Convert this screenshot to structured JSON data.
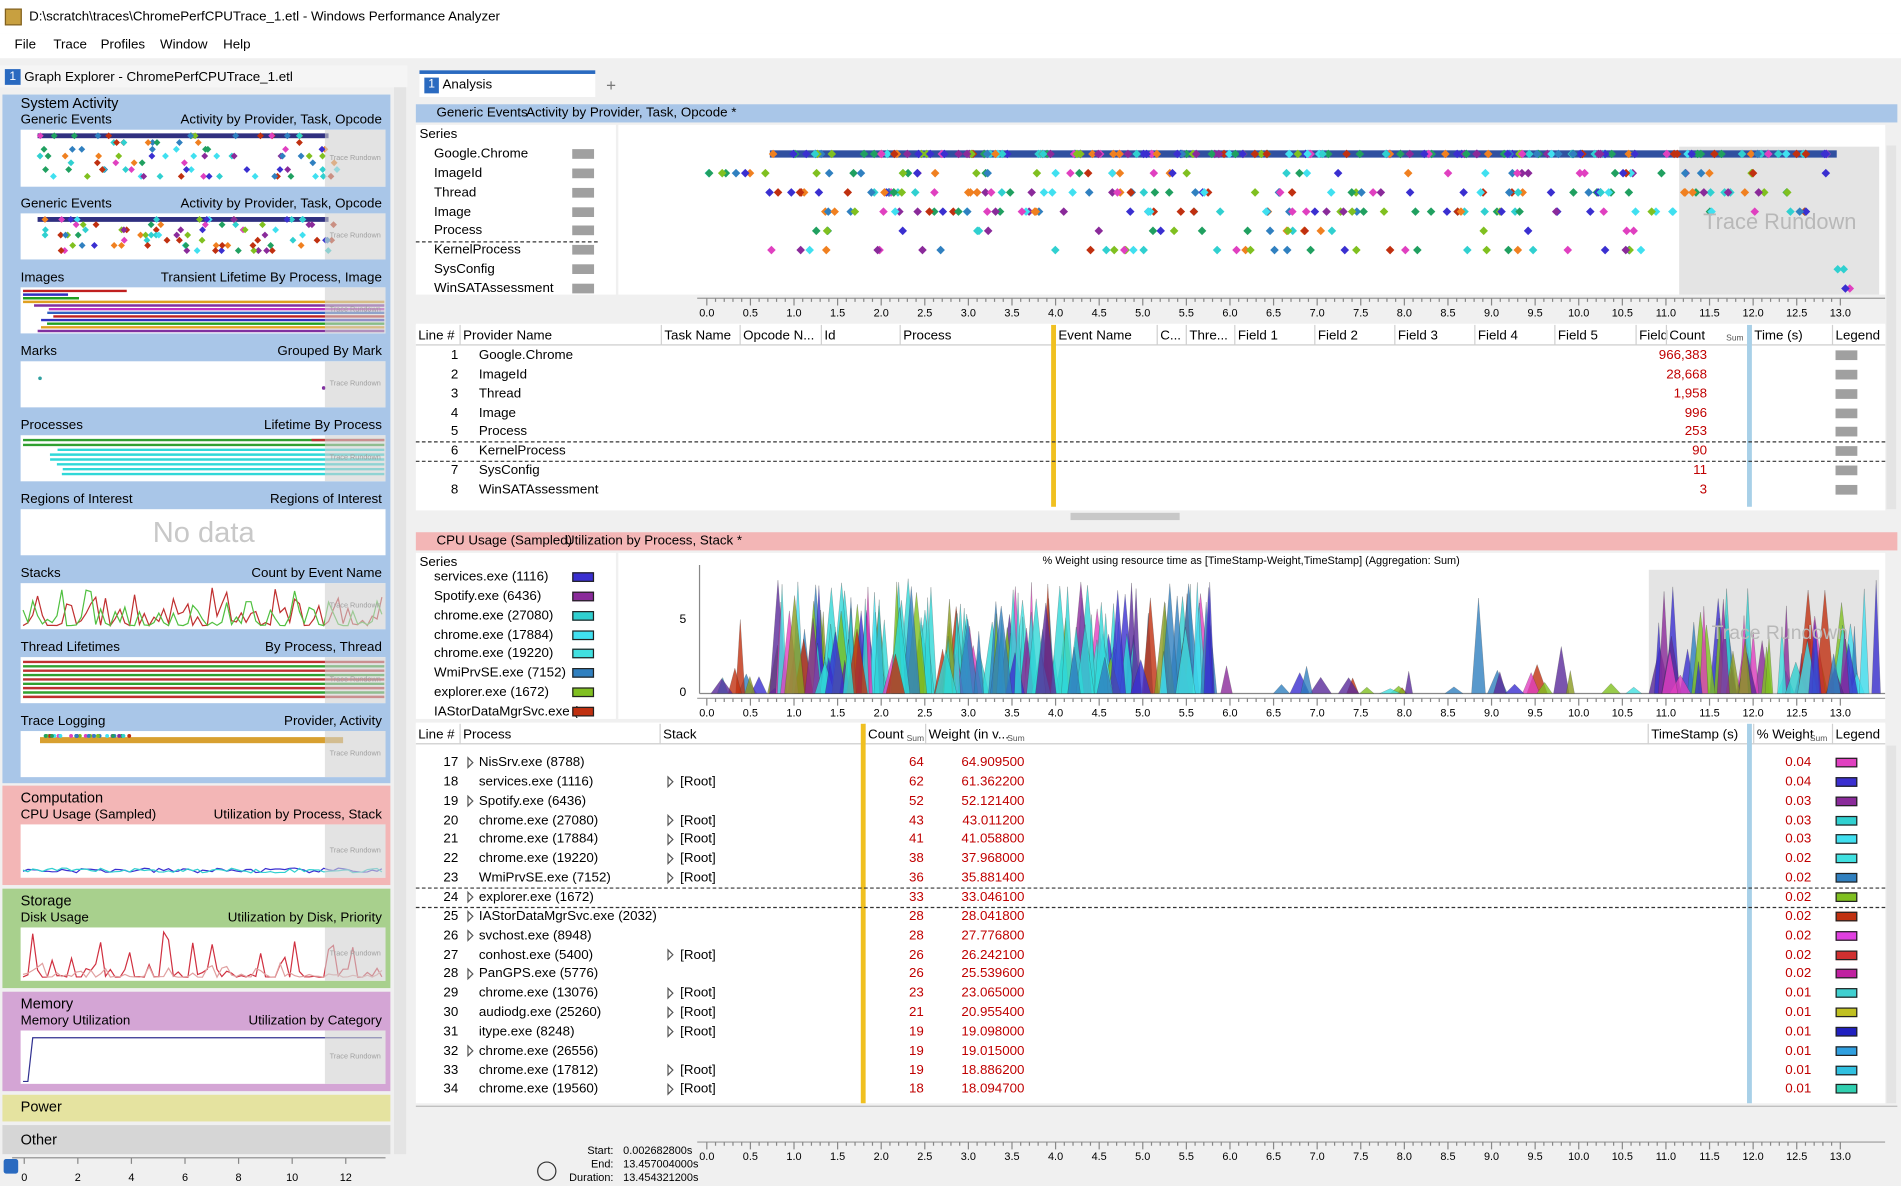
{
  "window": {
    "title": "D:\\scratch\\traces\\ChromePerfCPUTrace_1.etl - Windows Performance Analyzer",
    "menu": [
      "File",
      "Trace",
      "Profiles",
      "Window",
      "Help"
    ]
  },
  "trace_rundown": "Trace Rundown",
  "timeline_ticks": [
    "0.0",
    "0.5",
    "1.0",
    "1.5",
    "2.0",
    "2.5",
    "3.0",
    "3.5",
    "4.0",
    "4.5",
    "5.0",
    "5.5",
    "6.0",
    "6.5",
    "7.0",
    "7.5",
    "8.0",
    "8.5",
    "9.0",
    "9.5",
    "10.0",
    "10.5",
    "11.0",
    "11.5",
    "12.0",
    "12.5",
    "13.0"
  ],
  "explorer": {
    "number": "1",
    "title": "Graph Explorer - ChromePerfCPUTrace_1.etl",
    "no_data": "No data",
    "groups": [
      {
        "name": "System Activity",
        "graphs": [
          [
            "Generic Events",
            "Activity by Provider, Task, Opcode"
          ],
          [
            "Generic Events",
            "Activity by Provider, Task, Opcode"
          ],
          [
            "Images",
            "Transient Lifetime By Process, Image"
          ],
          [
            "Marks",
            "Grouped By Mark"
          ],
          [
            "Processes",
            "Lifetime By Process"
          ],
          [
            "Regions of Interest",
            "Regions of Interest"
          ],
          [
            "Stacks",
            "Count by Event Name"
          ],
          [
            "Thread Lifetimes",
            "By Process, Thread"
          ],
          [
            "Trace Logging",
            "Provider, Activity"
          ]
        ]
      },
      {
        "name": "Computation",
        "graphs": [
          [
            "CPU Usage (Sampled)",
            "Utilization by Process, Stack"
          ]
        ]
      },
      {
        "name": "Storage",
        "graphs": [
          [
            "Disk Usage",
            "Utilization by Disk, Priority"
          ]
        ]
      },
      {
        "name": "Memory",
        "graphs": [
          [
            "Memory Utilization",
            "Utilization by Category"
          ]
        ]
      },
      {
        "name": "Power",
        "graphs": []
      },
      {
        "name": "Other",
        "graphs": []
      }
    ],
    "axis": [
      "0",
      "2",
      "4",
      "6",
      "8",
      "10",
      "12"
    ]
  },
  "analysis": {
    "number": "1",
    "label": "Analysis",
    "add": "+"
  },
  "generic": {
    "title": "Generic Events",
    "preset": "Activity by Provider, Task, Opcode *",
    "series_header": "Series",
    "series": [
      "Google.Chrome",
      "ImageId",
      "Thread",
      "Image",
      "Process",
      "KernelProcess",
      "SysConfig",
      "WinSATAssessment"
    ],
    "columns": [
      "Line #",
      "Provider Name",
      "Task Name",
      "Opcode N...",
      "Id",
      "Process",
      "Event Name",
      "C...",
      "Thre...",
      "Field 1",
      "Field 2",
      "Field 3",
      "Field 4",
      "Field 5",
      "Field",
      "Count",
      "Time (s)",
      "Legend"
    ],
    "sum": "Sum",
    "rows": [
      [
        "1",
        "Google.Chrome",
        "966,383"
      ],
      [
        "2",
        "ImageId",
        "28,668"
      ],
      [
        "3",
        "Thread",
        "1,958"
      ],
      [
        "4",
        "Image",
        "996"
      ],
      [
        "5",
        "Process",
        "253"
      ],
      [
        "6",
        "KernelProcess",
        "90"
      ],
      [
        "7",
        "SysConfig",
        "11"
      ],
      [
        "8",
        "WinSATAssessment",
        "3"
      ]
    ]
  },
  "cpu": {
    "title": "CPU Usage (Sampled)",
    "preset": "Utilization by Process, Stack *",
    "series_header": "Series",
    "caption": "% Weight using resource time as [TimeStamp-Weight,TimeStamp] (Aggregation: Sum)",
    "yticks": [
      "5",
      "0"
    ],
    "series": [
      {
        "name": "services.exe (1116)",
        "color": "#3a2fd0"
      },
      {
        "name": "Spotify.exe (6436)",
        "color": "#8a2a9a"
      },
      {
        "name": "chrome.exe (27080)",
        "color": "#30d0d0"
      },
      {
        "name": "chrome.exe (17884)",
        "color": "#40e0f0"
      },
      {
        "name": "chrome.exe (19220)",
        "color": "#40e0e0"
      },
      {
        "name": "WmiPrvSE.exe (7152)",
        "color": "#3080c0"
      },
      {
        "name": "explorer.exe (1672)",
        "color": "#80c020"
      },
      {
        "name": "IAStorDataMgrSvc.exe (...",
        "color": "#c03010"
      }
    ],
    "columns": [
      "Line #",
      "Process",
      "Stack",
      "Count",
      "Weight (in v...",
      "TimeStamp (s)",
      "% Weight",
      "Legend"
    ],
    "sum": "Sum",
    "rows": [
      [
        "17",
        "NisSrv.exe (8788)",
        "",
        "64",
        "64.909500",
        "0.04",
        "#e040c0"
      ],
      [
        "18",
        "services.exe (1116)",
        "[Root]",
        "62",
        "61.362200",
        "0.04",
        "#3a2fd0"
      ],
      [
        "19",
        "Spotify.exe (6436)",
        "",
        "52",
        "52.121400",
        "0.03",
        "#8a2a9a"
      ],
      [
        "20",
        "chrome.exe (27080)",
        "[Root]",
        "43",
        "43.011200",
        "0.03",
        "#30d0d0"
      ],
      [
        "21",
        "chrome.exe (17884)",
        "[Root]",
        "41",
        "41.058800",
        "0.03",
        "#40e0f0"
      ],
      [
        "22",
        "chrome.exe (19220)",
        "[Root]",
        "38",
        "37.968000",
        "0.02",
        "#40e0e0"
      ],
      [
        "23",
        "WmiPrvSE.exe (7152)",
        "[Root]",
        "36",
        "35.881400",
        "0.02",
        "#3080c0"
      ],
      [
        "24",
        "explorer.exe (1672)",
        "",
        "33",
        "33.046100",
        "0.02",
        "#80c020"
      ],
      [
        "25",
        "IAStorDataMgrSvc.exe (2032)",
        "",
        "28",
        "28.041800",
        "0.02",
        "#c03010"
      ],
      [
        "26",
        "svchost.exe (8948)",
        "",
        "28",
        "27.776800",
        "0.02",
        "#e040e0"
      ],
      [
        "27",
        "conhost.exe (5400)",
        "[Root]",
        "26",
        "26.242100",
        "0.02",
        "#d03030"
      ],
      [
        "28",
        "PanGPS.exe (5776)",
        "",
        "26",
        "25.539600",
        "0.02",
        "#c020a0"
      ],
      [
        "29",
        "chrome.exe (13076)",
        "[Root]",
        "23",
        "23.065000",
        "0.01",
        "#40d0d0"
      ],
      [
        "30",
        "audiodg.exe (25260)",
        "[Root]",
        "21",
        "20.955400",
        "0.01",
        "#c0c020"
      ],
      [
        "31",
        "itype.exe (8248)",
        "[Root]",
        "19",
        "19.098000",
        "0.01",
        "#2020c0"
      ],
      [
        "32",
        "chrome.exe (26556)",
        "",
        "19",
        "19.015000",
        "0.01",
        "#30a0e0"
      ],
      [
        "33",
        "chrome.exe (17812)",
        "[Root]",
        "19",
        "18.886200",
        "0.01",
        "#30c0e0"
      ],
      [
        "34",
        "chrome.exe (19560)",
        "[Root]",
        "18",
        "18.094700",
        "0.01",
        "#30d0b0"
      ]
    ]
  },
  "footer": {
    "start_label": "Start:",
    "start": "0.002682800s",
    "end_label": "End:",
    "end": "13.457004000s",
    "duration_label": "Duration:",
    "duration": "13.454321200s"
  }
}
